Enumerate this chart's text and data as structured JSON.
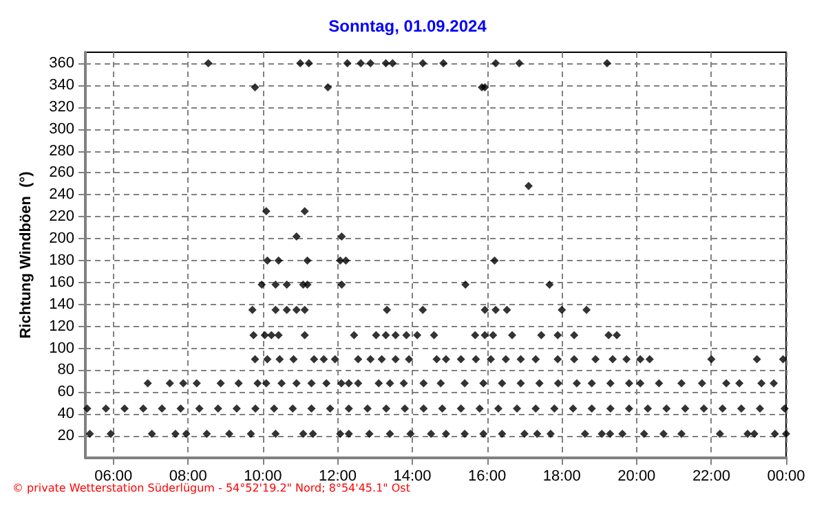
{
  "chart_data": {
    "type": "scatter",
    "title": "Sonntag, 01.09.2024",
    "ylabel": "Richtung Windböen  (°)",
    "annotations": [
      "© private Wetterstation Süderlügum - 54°52'19.2\" Nord; 8°54'45.1\" Ost"
    ],
    "xlim": [
      5.25,
      24
    ],
    "xticks": [
      {
        "value": 6,
        "label": "06:00"
      },
      {
        "value": 8,
        "label": "08:00"
      },
      {
        "value": 10,
        "label": "10:00"
      },
      {
        "value": 12,
        "label": "12:00"
      },
      {
        "value": 14,
        "label": "14:00"
      },
      {
        "value": 16,
        "label": "16:00"
      },
      {
        "value": 18,
        "label": "18:00"
      },
      {
        "value": 20,
        "label": "20:00"
      },
      {
        "value": 22,
        "label": "22:00"
      },
      {
        "value": 24,
        "label": "00:00"
      }
    ],
    "ylim": [
      0,
      370
    ],
    "yticks": [
      20,
      40,
      60,
      80,
      100,
      120,
      140,
      160,
      180,
      200,
      220,
      240,
      260,
      280,
      300,
      320,
      340,
      360
    ],
    "grid": true,
    "marker": "diamond",
    "series": [
      {
        "color": "#000000",
        "x": [
          8.54,
          11.0,
          11.23,
          12.26,
          12.62,
          12.88,
          13.29,
          13.47,
          14.28,
          14.83,
          16.23,
          16.86,
          19.21
        ],
        "values": [
          360,
          360,
          360,
          360,
          360,
          360,
          360,
          360,
          360,
          360,
          360,
          360,
          360
        ]
      },
      {
        "color": "#000000",
        "x": [
          9.79,
          11.74,
          15.86,
          15.94
        ],
        "values": [
          338,
          338,
          338,
          338
        ]
      },
      {
        "color": "#000000",
        "x": [
          17.11
        ],
        "values": [
          248
        ]
      },
      {
        "color": "#000000",
        "x": [
          10.09,
          11.12
        ],
        "values": [
          225,
          225
        ]
      },
      {
        "color": "#000000",
        "x": [
          10.9,
          12.11
        ],
        "values": [
          202,
          202
        ]
      },
      {
        "color": "#000000",
        "x": [
          10.12,
          10.42,
          11.19,
          12.07,
          12.22,
          16.2
        ],
        "values": [
          180,
          180,
          180,
          180,
          180,
          180
        ]
      },
      {
        "color": "#000000",
        "x": [
          9.97,
          10.34,
          10.64,
          11.08,
          11.19,
          12.11,
          15.42,
          17.67
        ],
        "values": [
          158,
          158,
          158,
          158,
          158,
          158,
          158,
          158
        ]
      },
      {
        "color": "#000000",
        "x": [
          9.72,
          10.34,
          10.64,
          10.9,
          11.12,
          13.32,
          14.28,
          15.94,
          16.23,
          16.53,
          18.0,
          18.66
        ],
        "values": [
          135,
          135,
          135,
          135,
          135,
          135,
          135,
          135,
          135,
          135,
          135,
          135
        ]
      },
      {
        "color": "#000000",
        "x": [
          9.75,
          10.05,
          10.23,
          10.42,
          11.12,
          12.44,
          13.03,
          13.29,
          13.55,
          13.84,
          14.13,
          14.58,
          15.68,
          15.94,
          16.16,
          16.67,
          17.45,
          17.89,
          18.33,
          19.25,
          19.47
        ],
        "values": [
          112,
          112,
          112,
          112,
          112,
          112,
          112,
          112,
          112,
          112,
          112,
          112,
          112,
          112,
          112,
          112,
          112,
          112,
          112,
          112,
          112
        ]
      },
      {
        "color": "#000000",
        "x": [
          9.79,
          10.12,
          10.45,
          10.82,
          11.37,
          11.63,
          11.93,
          12.55,
          12.88,
          13.18,
          13.55,
          13.91,
          14.65,
          14.9,
          15.3,
          15.7,
          16.1,
          16.5,
          16.9,
          17.3,
          17.89,
          18.33,
          18.9,
          19.36,
          19.73,
          20.1,
          20.35,
          22.0,
          23.22,
          23.92
        ],
        "values": [
          90,
          90,
          90,
          90,
          90,
          90,
          90,
          90,
          90,
          90,
          90,
          90,
          90,
          90,
          90,
          90,
          90,
          90,
          90,
          90,
          90,
          90,
          90,
          90,
          90,
          90,
          90,
          90,
          90,
          90
        ]
      },
      {
        "color": "#000000",
        "x": [
          6.92,
          7.51,
          7.87,
          8.23,
          8.87,
          9.35,
          9.86,
          10.09,
          10.5,
          10.9,
          11.3,
          11.7,
          12.1,
          12.3,
          12.55,
          13.1,
          13.4,
          13.77,
          14.3,
          14.76,
          15.4,
          15.9,
          16.4,
          16.9,
          17.4,
          17.9,
          18.4,
          18.8,
          19.3,
          19.8,
          20.1,
          20.6,
          21.2,
          21.75,
          22.4,
          22.75,
          23.34,
          23.67
        ],
        "values": [
          68,
          68,
          68,
          68,
          68,
          68,
          68,
          68,
          68,
          68,
          68,
          68,
          68,
          68,
          68,
          68,
          68,
          68,
          68,
          68,
          68,
          68,
          68,
          68,
          68,
          68,
          68,
          68,
          68,
          68,
          68,
          68,
          68,
          68,
          68,
          68,
          68,
          68
        ]
      },
      {
        "color": "#000000",
        "x": [
          5.3,
          5.8,
          6.3,
          6.8,
          7.3,
          7.8,
          8.3,
          8.8,
          9.3,
          9.8,
          10.3,
          10.8,
          11.3,
          11.8,
          12.3,
          12.8,
          13.3,
          13.8,
          14.3,
          14.8,
          15.3,
          15.8,
          16.3,
          16.8,
          17.3,
          17.8,
          18.3,
          18.8,
          19.3,
          19.8,
          20.3,
          20.8,
          21.3,
          21.8,
          22.3,
          22.8,
          23.3,
          23.96
        ],
        "values": [
          45,
          45,
          45,
          45,
          45,
          45,
          45,
          45,
          45,
          45,
          45,
          45,
          45,
          45,
          45,
          45,
          45,
          45,
          45,
          45,
          45,
          45,
          45,
          45,
          45,
          45,
          45,
          45,
          45,
          45,
          45,
          45,
          45,
          45,
          45,
          45,
          45,
          45
        ]
      },
      {
        "color": "#000000",
        "x": [
          5.37,
          5.93,
          7.03,
          7.66,
          7.95,
          8.5,
          9.1,
          9.68,
          10.34,
          11.08,
          11.34,
          12.07,
          12.3,
          12.85,
          13.4,
          13.95,
          14.5,
          14.9,
          15.4,
          15.9,
          16.4,
          17.0,
          17.34,
          17.7,
          18.62,
          19.07,
          19.29,
          19.62,
          20.2,
          20.72,
          21.2,
          22.23,
          22.97,
          23.15,
          23.7,
          24.0
        ],
        "values": [
          22,
          22,
          22,
          22,
          22,
          22,
          22,
          22,
          22,
          22,
          22,
          22,
          22,
          22,
          22,
          22,
          22,
          22,
          22,
          22,
          22,
          22,
          22,
          22,
          22,
          22,
          22,
          22,
          22,
          22,
          22,
          22,
          22,
          22,
          22,
          22
        ]
      }
    ]
  }
}
